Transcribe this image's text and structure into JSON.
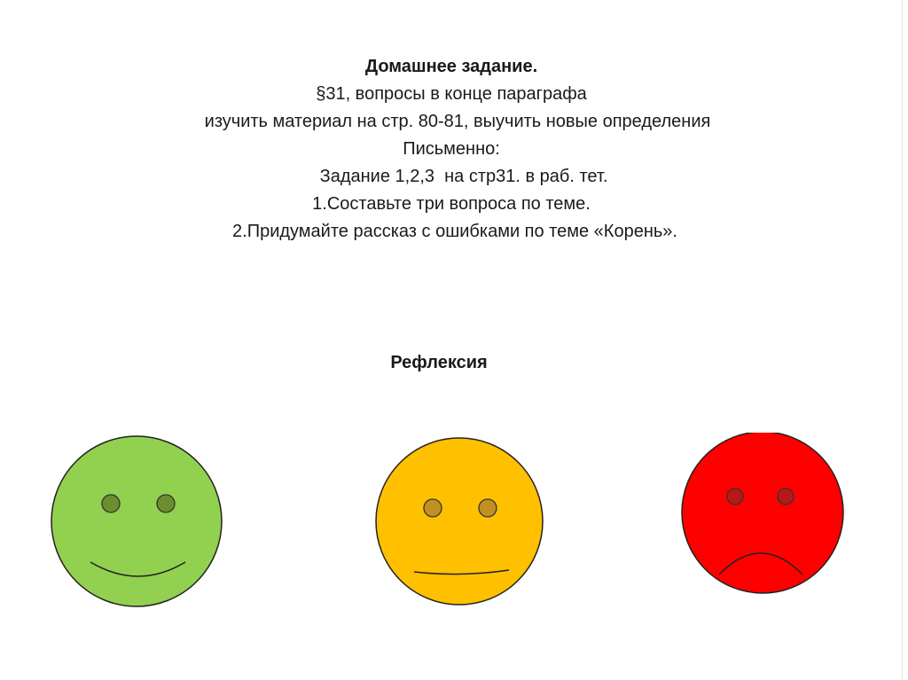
{
  "homework": {
    "title": "Домашнее задание.",
    "lines": [
      "§31, вопросы в конце параграфа",
      "изучить материал на стр. 80-81, выучить новые определения",
      "Письменно:",
      "Задание 1,2,3  на стр31. в раб. тет.",
      "1.Составьте три вопроса по теме.",
      "2.Придумайте рассказ с ошибками по теме «Корень»."
    ]
  },
  "reflection": {
    "title": "Рефлексия",
    "faces": [
      {
        "mood": "happy",
        "face_color": "#92d050",
        "eye_color": "#6b8f2e",
        "icon": "happy-face-icon"
      },
      {
        "mood": "neutral",
        "face_color": "#ffc000",
        "eye_color": "#c09020",
        "icon": "neutral-face-icon"
      },
      {
        "mood": "sad",
        "face_color": "#ff0000",
        "eye_color": "#b81818",
        "icon": "sad-face-icon"
      }
    ]
  }
}
